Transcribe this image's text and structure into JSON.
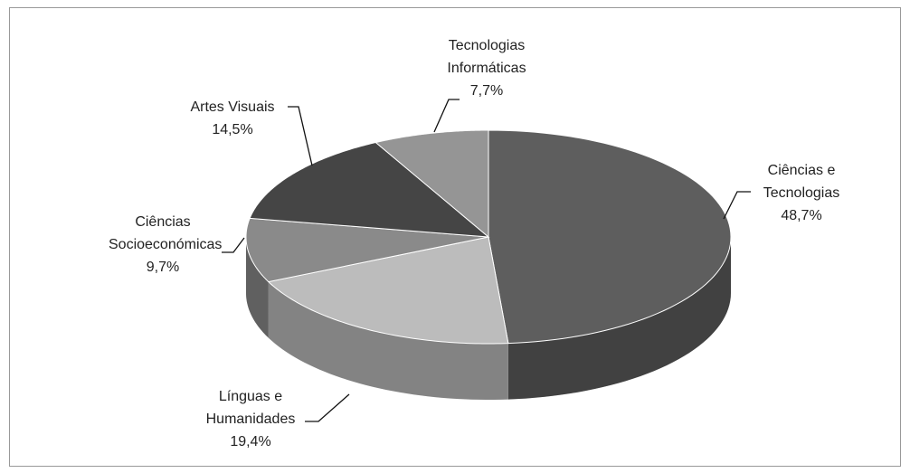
{
  "chart_data": {
    "type": "pie",
    "categories": [
      "Ciências e Tecnologias",
      "Línguas e Humanidades",
      "Ciências Socioeconómicas",
      "Artes Visuais",
      "Tecnologias Informáticas"
    ],
    "values": [
      48.7,
      19.4,
      9.7,
      14.5,
      7.7
    ],
    "value_labels": [
      "48,7%",
      "19,4%",
      "9,7%",
      "14,5%",
      "7,7%"
    ],
    "colors": [
      "#5e5e5e",
      "#bcbcbc",
      "#8a8a8a",
      "#454545",
      "#959595"
    ]
  }
}
